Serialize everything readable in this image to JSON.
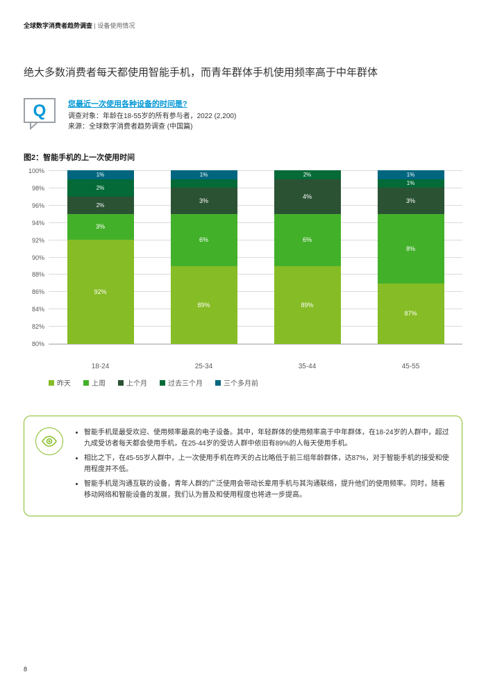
{
  "header": {
    "bold": "全球数字消费者趋势调查",
    "light": " | 设备使用情况"
  },
  "title": "绝大多数消费者每天都使用智能手机，而青年群体手机使用频率高于中年群体",
  "question": {
    "title": "您最近一次使用各种设备的时间是?",
    "sub1": "调查对象：年龄在18-55岁的所有参与者，2022 (2,200)",
    "sub2": "来源：全球数字消费者趋势调查 (中国篇)"
  },
  "figure_title": "图2：智能手机的上一次使用时间",
  "chart": {
    "type": "stacked-bar",
    "ylim": [
      80,
      100
    ],
    "ytick_step": 2,
    "grid_color": "#d9d9d9",
    "categories": [
      "18-24",
      "25-34",
      "35-44",
      "45-55"
    ],
    "series": [
      {
        "name": "昨天",
        "color": "#86bc25"
      },
      {
        "name": "上周",
        "color": "#43b02a"
      },
      {
        "name": "上个月",
        "color": "#2c5234"
      },
      {
        "name": "过去三个月",
        "color": "#046a38"
      },
      {
        "name": "三个多月前",
        "color": "#00667f"
      }
    ],
    "stacks": [
      [
        {
          "v": 92,
          "l": "92%"
        },
        {
          "v": 3,
          "l": "3%"
        },
        {
          "v": 2,
          "l": "2%"
        },
        {
          "v": 2,
          "l": "2%"
        },
        {
          "v": 1,
          "l": "1%"
        }
      ],
      [
        {
          "v": 89,
          "l": "89%"
        },
        {
          "v": 6,
          "l": "6%"
        },
        {
          "v": 3,
          "l": "3%"
        },
        {
          "v": 1,
          "l": ""
        },
        {
          "v": 1,
          "l": "1%"
        }
      ],
      [
        {
          "v": 89,
          "l": "89%"
        },
        {
          "v": 6,
          "l": "6%"
        },
        {
          "v": 4,
          "l": "4%"
        },
        {
          "v": 2,
          "l": "2%"
        },
        {
          "v": 0,
          "l": ""
        }
      ],
      [
        {
          "v": 87,
          "l": "87%"
        },
        {
          "v": 8,
          "l": "8%"
        },
        {
          "v": 3,
          "l": "3%"
        },
        {
          "v": 1,
          "l": "1%"
        },
        {
          "v": 1,
          "l": "1%"
        }
      ]
    ]
  },
  "insights": [
    "智能手机是最受欢迎、使用频率最高的电子设备。其中，年轻群体的使用频率高于中年群体，在18-24岁的人群中，超过九成受访者每天都会使用手机，在25-44岁的受访人群中依旧有89%的人每天使用手机。",
    "相比之下，在45-55岁人群中，上一次使用手机在昨天的占比略低于前三组年龄群体，达87%，对于智能手机的接受和使用程度并不低。",
    "智能手机是沟通互联的设备，青年人群的广泛使用会带动长辈用手机与其沟通联络，提升他们的使用频率。同时，随着移动网络和智能设备的发展，我们认为普及和使用程度也将进一步提高。"
  ],
  "page_number": "8"
}
